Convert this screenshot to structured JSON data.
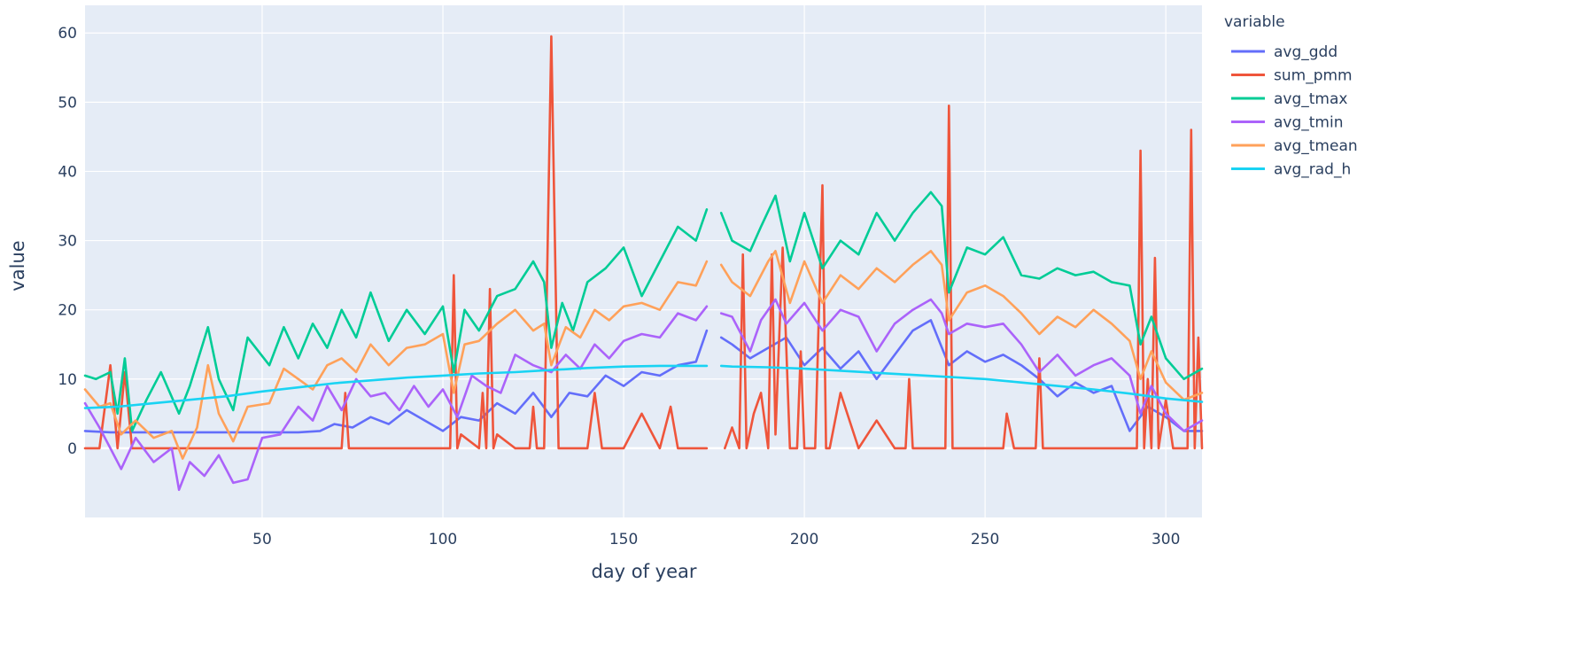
{
  "chart_data": {
    "type": "line",
    "title": "",
    "xlabel": "day of year",
    "ylabel": "value",
    "xlim": [
      1,
      310
    ],
    "ylim": [
      -10,
      64
    ],
    "xticks": [
      50,
      100,
      150,
      200,
      250,
      300
    ],
    "yticks": [
      0,
      10,
      20,
      30,
      40,
      50,
      60
    ],
    "grid": true,
    "legend": {
      "title": "variable",
      "placement": "right"
    },
    "gap_days": [
      174,
      175,
      176
    ],
    "series": [
      {
        "name": "avg_gdd",
        "color": "#636efa",
        "x": [
          1,
          8,
          15,
          22,
          30,
          38,
          45,
          52,
          60,
          66,
          70,
          75,
          80,
          85,
          90,
          95,
          100,
          105,
          110,
          115,
          120,
          125,
          130,
          135,
          140,
          145,
          150,
          155,
          160,
          165,
          170,
          173,
          177,
          180,
          185,
          190,
          195,
          200,
          205,
          210,
          215,
          220,
          225,
          230,
          235,
          240,
          245,
          250,
          255,
          260,
          265,
          270,
          275,
          280,
          285,
          290,
          295,
          300,
          305,
          310
        ],
        "values": [
          2.5,
          2.3,
          2.3,
          2.3,
          2.3,
          2.3,
          2.3,
          2.3,
          2.3,
          2.5,
          3.5,
          3.0,
          4.5,
          3.5,
          5.5,
          4.0,
          2.5,
          4.5,
          4.0,
          6.5,
          5.0,
          8.0,
          4.5,
          8.0,
          7.5,
          10.5,
          9.0,
          11.0,
          10.5,
          12.0,
          12.5,
          17.0,
          16.0,
          15.0,
          13.0,
          14.5,
          16.0,
          12.0,
          14.5,
          11.5,
          14.0,
          10.0,
          13.5,
          17.0,
          18.5,
          12.0,
          14.0,
          12.5,
          13.5,
          12.0,
          10.0,
          7.5,
          9.5,
          8.0,
          9.0,
          2.5,
          6.0,
          4.5,
          2.5,
          2.5
        ]
      },
      {
        "name": "sum_pmm",
        "color": "#ef553b",
        "x": [
          1,
          5,
          8,
          10,
          12,
          14,
          18,
          30,
          60,
          72,
          73,
          74,
          75,
          80,
          100,
          102,
          103,
          104,
          105,
          110,
          111,
          112,
          113,
          114,
          115,
          120,
          124,
          125,
          126,
          128,
          130,
          132,
          134,
          140,
          142,
          144,
          150,
          155,
          160,
          163,
          165,
          170,
          173,
          178,
          180,
          182,
          183,
          184,
          186,
          188,
          190,
          191,
          192,
          194,
          196,
          198,
          199,
          200,
          203,
          205,
          206,
          207,
          210,
          215,
          220,
          225,
          228,
          229,
          230,
          232,
          238,
          239,
          240,
          241,
          245,
          250,
          255,
          256,
          258,
          262,
          264,
          265,
          266,
          270,
          280,
          288,
          290,
          292,
          293,
          294,
          295,
          296,
          297,
          298,
          300,
          302,
          304,
          306,
          307,
          308,
          309,
          310
        ],
        "values": [
          0,
          0,
          12.0,
          0,
          11.0,
          0,
          0,
          0,
          0,
          0,
          8.0,
          0,
          0,
          0,
          0,
          0,
          25.0,
          0,
          2.0,
          0,
          8.0,
          0,
          23.0,
          0,
          2.0,
          0,
          0,
          6.0,
          0,
          0,
          59.5,
          0,
          0,
          0,
          8.0,
          0,
          0,
          5.0,
          0,
          6.0,
          0,
          0,
          0,
          0,
          3.0,
          0,
          28.0,
          0,
          5.0,
          8.0,
          0,
          28.0,
          2.0,
          29.0,
          0,
          0,
          14.0,
          0,
          0,
          38.0,
          0,
          0,
          8.0,
          0,
          4.0,
          0,
          0,
          10.0,
          0,
          0,
          0,
          0,
          49.5,
          0,
          0,
          0,
          0,
          5.0,
          0,
          0,
          0,
          13.0,
          0,
          0,
          0,
          0,
          0,
          0,
          43.0,
          0,
          10.0,
          0,
          27.5,
          0,
          7.0,
          0,
          0,
          0,
          46.0,
          0,
          16.0,
          0
        ]
      },
      {
        "name": "avg_tmax",
        "color": "#00cc96",
        "x": [
          1,
          4,
          8,
          10,
          12,
          14,
          18,
          22,
          27,
          30,
          35,
          38,
          42,
          46,
          52,
          56,
          60,
          64,
          68,
          72,
          76,
          80,
          85,
          90,
          95,
          100,
          103,
          106,
          110,
          115,
          120,
          125,
          128,
          130,
          133,
          136,
          140,
          145,
          150,
          155,
          160,
          165,
          170,
          173,
          177,
          180,
          185,
          188,
          192,
          196,
          200,
          205,
          210,
          215,
          220,
          225,
          230,
          235,
          238,
          240,
          245,
          250,
          255,
          260,
          265,
          270,
          275,
          280,
          285,
          290,
          293,
          296,
          300,
          305,
          310
        ],
        "values": [
          10.5,
          10.0,
          11.0,
          5.0,
          13.0,
          2.5,
          7.0,
          11.0,
          5.0,
          9.0,
          17.5,
          10.0,
          5.5,
          16.0,
          12.0,
          17.5,
          13.0,
          18.0,
          14.5,
          20.0,
          16.0,
          22.5,
          15.5,
          20.0,
          16.5,
          20.5,
          11.0,
          20.0,
          17.0,
          22.0,
          23.0,
          27.0,
          24.0,
          14.5,
          21.0,
          17.0,
          24.0,
          26.0,
          29.0,
          22.0,
          27.0,
          32.0,
          30.0,
          34.5,
          34.0,
          30.0,
          28.5,
          32.0,
          36.5,
          27.0,
          34.0,
          26.0,
          30.0,
          28.0,
          34.0,
          30.0,
          34.0,
          37.0,
          35.0,
          22.5,
          29.0,
          28.0,
          30.5,
          25.0,
          24.5,
          26.0,
          25.0,
          25.5,
          24.0,
          23.5,
          15.0,
          19.0,
          13.0,
          10.0,
          11.5
        ]
      },
      {
        "name": "avg_tmin",
        "color": "#ab63fa",
        "x": [
          1,
          5,
          8,
          11,
          15,
          20,
          25,
          27,
          30,
          34,
          38,
          42,
          46,
          50,
          55,
          60,
          64,
          68,
          72,
          76,
          80,
          84,
          88,
          92,
          96,
          100,
          104,
          108,
          112,
          116,
          120,
          125,
          130,
          134,
          138,
          142,
          146,
          150,
          155,
          160,
          165,
          170,
          173,
          177,
          180,
          185,
          188,
          192,
          195,
          200,
          205,
          210,
          215,
          220,
          225,
          230,
          235,
          238,
          240,
          245,
          250,
          255,
          260,
          265,
          270,
          275,
          280,
          285,
          290,
          293,
          296,
          300,
          305,
          310
        ],
        "values": [
          6.5,
          3.0,
          0.0,
          -3.0,
          1.5,
          -2.0,
          0.0,
          -6.0,
          -2.0,
          -4.0,
          -1.0,
          -5.0,
          -4.5,
          1.5,
          2.0,
          6.0,
          4.0,
          9.0,
          5.5,
          10.0,
          7.5,
          8.0,
          5.5,
          9.0,
          6.0,
          8.5,
          4.5,
          10.5,
          9.0,
          8.0,
          13.5,
          12.0,
          11.0,
          13.5,
          11.5,
          15.0,
          13.0,
          15.5,
          16.5,
          16.0,
          19.5,
          18.5,
          20.5,
          19.5,
          19.0,
          14.0,
          18.5,
          21.5,
          18.0,
          21.0,
          17.0,
          20.0,
          19.0,
          14.0,
          18.0,
          20.0,
          21.5,
          19.5,
          16.5,
          18.0,
          17.5,
          18.0,
          15.0,
          11.0,
          13.5,
          10.5,
          12.0,
          13.0,
          10.5,
          5.0,
          9.0,
          5.0,
          2.5,
          4.0
        ]
      },
      {
        "name": "avg_tmean",
        "color": "#ffa15a",
        "x": [
          1,
          5,
          8,
          11,
          15,
          20,
          25,
          28,
          32,
          35,
          38,
          42,
          46,
          52,
          56,
          60,
          64,
          68,
          72,
          76,
          80,
          85,
          90,
          95,
          100,
          103,
          106,
          110,
          115,
          120,
          125,
          128,
          130,
          134,
          138,
          142,
          146,
          150,
          155,
          160,
          165,
          170,
          173,
          177,
          180,
          185,
          190,
          192,
          196,
          200,
          205,
          210,
          215,
          220,
          225,
          230,
          235,
          238,
          240,
          245,
          250,
          255,
          260,
          265,
          270,
          275,
          280,
          285,
          290,
          293,
          296,
          300,
          305,
          310
        ],
        "values": [
          8.5,
          6.0,
          6.5,
          2.0,
          4.0,
          1.5,
          2.5,
          -1.5,
          3.0,
          12.0,
          5.0,
          1.0,
          6.0,
          6.5,
          11.5,
          10.0,
          8.5,
          12.0,
          13.0,
          11.0,
          15.0,
          12.0,
          14.5,
          15.0,
          16.5,
          8.0,
          15.0,
          15.5,
          18.0,
          20.0,
          17.0,
          18.0,
          12.0,
          17.5,
          16.0,
          20.0,
          18.5,
          20.5,
          21.0,
          20.0,
          24.0,
          23.5,
          27.0,
          26.5,
          24.0,
          22.0,
          27.0,
          28.5,
          21.0,
          27.0,
          21.0,
          25.0,
          23.0,
          26.0,
          24.0,
          26.5,
          28.5,
          26.5,
          18.5,
          22.5,
          23.5,
          22.0,
          19.5,
          16.5,
          19.0,
          17.5,
          20.0,
          18.0,
          15.5,
          10.0,
          14.0,
          9.5,
          7.0,
          8.0
        ]
      },
      {
        "name": "avg_rad_h",
        "color": "#19d3f3",
        "x": [
          1,
          10,
          20,
          30,
          40,
          50,
          60,
          70,
          80,
          90,
          100,
          110,
          120,
          130,
          140,
          150,
          160,
          170,
          173,
          177,
          180,
          190,
          200,
          210,
          220,
          230,
          240,
          250,
          260,
          270,
          280,
          290,
          300,
          310
        ],
        "values": [
          5.8,
          6.0,
          6.5,
          7.0,
          7.5,
          8.2,
          8.8,
          9.4,
          9.8,
          10.2,
          10.5,
          10.8,
          11.0,
          11.3,
          11.6,
          11.8,
          11.9,
          11.9,
          11.9,
          11.9,
          11.8,
          11.7,
          11.5,
          11.2,
          10.9,
          10.6,
          10.3,
          10.0,
          9.5,
          9.0,
          8.5,
          7.9,
          7.2,
          6.7
        ]
      }
    ]
  }
}
